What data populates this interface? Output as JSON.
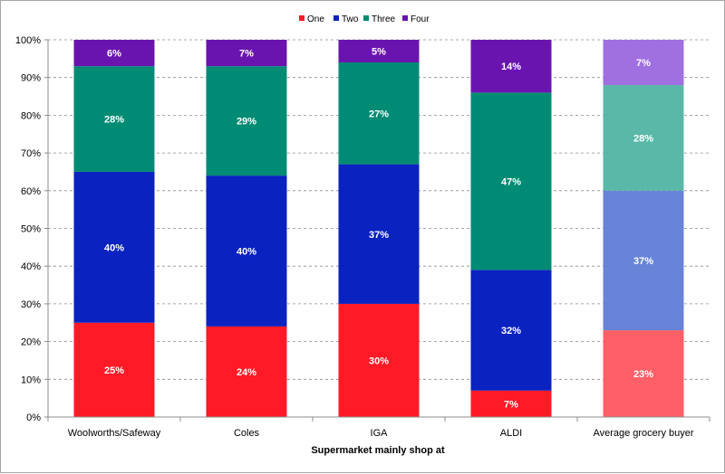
{
  "chart_data": {
    "type": "bar",
    "stacked": true,
    "percent_stacked": true,
    "xlabel": "Supermarket mainly shop at",
    "ylabel": "",
    "ylim": [
      0,
      100
    ],
    "y_ticks": [
      "0%",
      "10%",
      "20%",
      "30%",
      "40%",
      "50%",
      "60%",
      "70%",
      "80%",
      "90%",
      "100%"
    ],
    "grid": "horizontal dashed",
    "legend_position": "top",
    "categories": [
      "Woolworths/Safeway",
      "Coles",
      "IGA",
      "ALDI",
      "Average grocery buyer"
    ],
    "series": [
      {
        "name": "One",
        "color": "#ff1a26",
        "values": [
          25,
          24,
          30,
          7,
          23
        ],
        "labels": [
          "25%",
          "24%",
          "30%",
          "7%",
          "23%"
        ]
      },
      {
        "name": "Two",
        "color": "#0a22c0",
        "values": [
          40,
          40,
          37,
          32,
          37
        ],
        "labels": [
          "40%",
          "40%",
          "37%",
          "32%",
          "37%"
        ]
      },
      {
        "name": "Three",
        "color": "#008b74",
        "values": [
          28,
          29,
          27,
          47,
          28
        ],
        "labels": [
          "28%",
          "29%",
          "27%",
          "47%",
          "28%"
        ]
      },
      {
        "name": "Four",
        "color": "#6a14b0",
        "values": [
          6,
          7,
          5,
          14,
          7
        ],
        "labels": [
          "6%",
          "7%",
          "5%",
          "14%",
          "7%"
        ]
      }
    ],
    "highlight_category_colors": {
      "Average grocery buyer": [
        "#ff6068",
        "#6884d8",
        "#5ab8a8",
        "#a070e0"
      ]
    }
  }
}
